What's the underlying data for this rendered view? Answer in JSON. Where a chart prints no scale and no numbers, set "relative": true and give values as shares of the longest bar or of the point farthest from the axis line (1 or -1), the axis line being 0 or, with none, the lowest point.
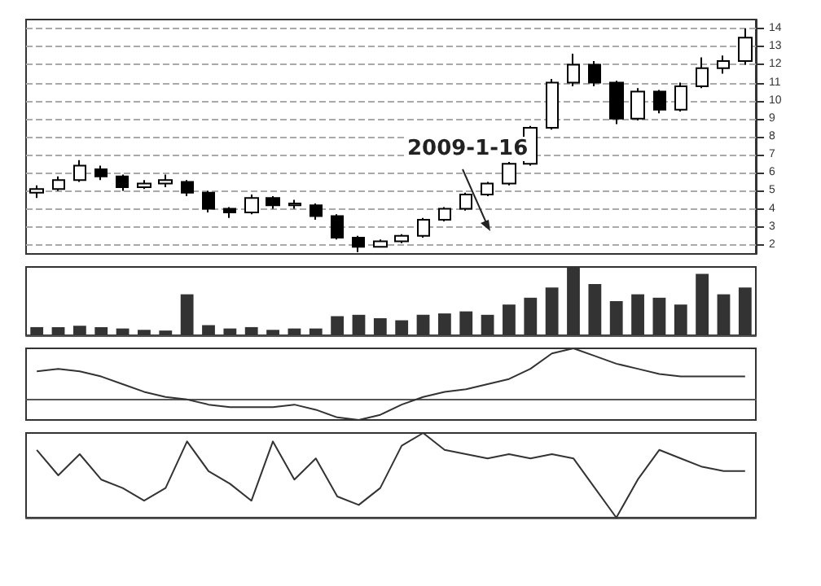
{
  "chart_data": [
    {
      "type": "candlestick",
      "categories": [
        null,
        null,
        null,
        null,
        null,
        null,
        null,
        null,
        null,
        null,
        null,
        null,
        null,
        null,
        null,
        null,
        null,
        null,
        null,
        null,
        null,
        null,
        null,
        null,
        null,
        null,
        null,
        null,
        null,
        null,
        null,
        null,
        null,
        null
      ],
      "ohlc": [
        [
          4.9,
          5.3,
          4.6,
          5.1
        ],
        [
          5.1,
          5.8,
          5.0,
          5.6
        ],
        [
          5.6,
          6.7,
          5.5,
          6.4
        ],
        [
          6.2,
          6.4,
          5.6,
          5.8
        ],
        [
          5.8,
          5.9,
          5.0,
          5.2
        ],
        [
          5.2,
          5.6,
          5.1,
          5.4
        ],
        [
          5.4,
          5.9,
          5.2,
          5.6
        ],
        [
          5.5,
          5.6,
          4.7,
          4.9
        ],
        [
          4.9,
          5.0,
          3.8,
          4.0
        ],
        [
          4.0,
          4.1,
          3.5,
          3.8
        ],
        [
          3.8,
          4.8,
          3.7,
          4.6
        ],
        [
          4.6,
          4.7,
          4.0,
          4.2
        ],
        [
          4.2,
          4.5,
          4.0,
          4.3
        ],
        [
          4.2,
          4.3,
          3.4,
          3.6
        ],
        [
          3.6,
          3.7,
          2.3,
          2.4
        ],
        [
          2.4,
          2.5,
          1.6,
          1.9
        ],
        [
          1.9,
          2.3,
          1.9,
          2.2
        ],
        [
          2.2,
          2.6,
          2.1,
          2.5
        ],
        [
          2.5,
          3.5,
          2.4,
          3.4
        ],
        [
          3.4,
          4.1,
          3.3,
          4.0
        ],
        [
          4.0,
          4.9,
          3.9,
          4.8
        ],
        [
          4.8,
          5.5,
          4.7,
          5.4
        ],
        [
          5.4,
          6.6,
          5.3,
          6.5
        ],
        [
          6.5,
          8.6,
          6.4,
          8.5
        ],
        [
          8.5,
          11.2,
          8.4,
          11.0
        ],
        [
          11.0,
          12.6,
          10.8,
          12.0
        ],
        [
          12.0,
          12.2,
          10.8,
          11.0
        ],
        [
          11.0,
          11.1,
          8.7,
          9.0
        ],
        [
          9.0,
          10.7,
          8.9,
          10.5
        ],
        [
          10.5,
          10.6,
          9.3,
          9.5
        ],
        [
          9.5,
          11.0,
          9.4,
          10.8
        ],
        [
          10.8,
          12.4,
          10.7,
          11.8
        ],
        [
          11.8,
          12.5,
          11.5,
          12.2
        ],
        [
          12.2,
          14.0,
          12.0,
          13.5
        ]
      ],
      "color": "#000000",
      "ylim": [
        1.5,
        14.5
      ],
      "yticks": [
        2,
        3,
        4,
        5,
        6,
        7,
        8,
        9,
        10,
        11,
        12,
        13,
        14
      ],
      "grid": "y",
      "annotations": [
        "2009-1-16"
      ]
    },
    {
      "type": "bar",
      "relative": true,
      "color": "#333333",
      "categories": [
        null,
        null,
        null,
        null,
        null,
        null,
        null,
        null,
        null,
        null,
        null,
        null,
        null,
        null,
        null,
        null,
        null,
        null,
        null,
        null,
        null,
        null,
        null,
        null,
        null,
        null,
        null,
        null,
        null,
        null,
        null,
        null,
        null,
        null
      ],
      "values": [
        0.12,
        0.12,
        0.14,
        0.12,
        0.1,
        0.08,
        0.07,
        0.6,
        0.15,
        0.1,
        0.12,
        0.08,
        0.1,
        0.1,
        0.28,
        0.3,
        0.25,
        0.22,
        0.3,
        0.32,
        0.35,
        0.3,
        0.45,
        0.55,
        0.7,
        1.0,
        0.75,
        0.5,
        0.6,
        0.55,
        0.45,
        0.9,
        0.6,
        0.7
      ]
    },
    {
      "type": "line",
      "relative": true,
      "color": "#333333",
      "categories": [
        null,
        null,
        null,
        null,
        null,
        null,
        null,
        null,
        null,
        null,
        null,
        null,
        null,
        null,
        null,
        null,
        null,
        null,
        null,
        null,
        null,
        null,
        null,
        null,
        null,
        null,
        null,
        null,
        null,
        null,
        null,
        null,
        null,
        null
      ],
      "values": [
        0.55,
        0.6,
        0.55,
        0.45,
        0.3,
        0.15,
        0.05,
        0.0,
        -0.1,
        -0.15,
        -0.15,
        -0.15,
        -0.1,
        -0.2,
        -0.35,
        -0.4,
        -0.3,
        -0.1,
        0.05,
        0.15,
        0.2,
        0.3,
        0.4,
        0.6,
        0.9,
        1.0,
        0.85,
        0.7,
        0.6,
        0.5,
        0.45,
        0.45,
        0.45,
        0.45
      ]
    },
    {
      "type": "line",
      "relative": true,
      "color": "#333333",
      "categories": [
        null,
        null,
        null,
        null,
        null,
        null,
        null,
        null,
        null,
        null,
        null,
        null,
        null,
        null,
        null,
        null,
        null,
        null,
        null,
        null,
        null,
        null,
        null,
        null,
        null,
        null,
        null,
        null,
        null,
        null,
        null,
        null,
        null,
        null
      ],
      "values": [
        0.8,
        0.5,
        0.75,
        0.45,
        0.35,
        0.2,
        0.35,
        0.9,
        0.55,
        0.4,
        0.2,
        0.9,
        0.45,
        0.7,
        0.25,
        0.15,
        0.35,
        0.85,
        1.0,
        0.8,
        0.75,
        0.7,
        0.75,
        0.7,
        0.75,
        0.7,
        0.35,
        0.0,
        0.45,
        0.8,
        0.7,
        0.6,
        0.55,
        0.55
      ]
    }
  ]
}
